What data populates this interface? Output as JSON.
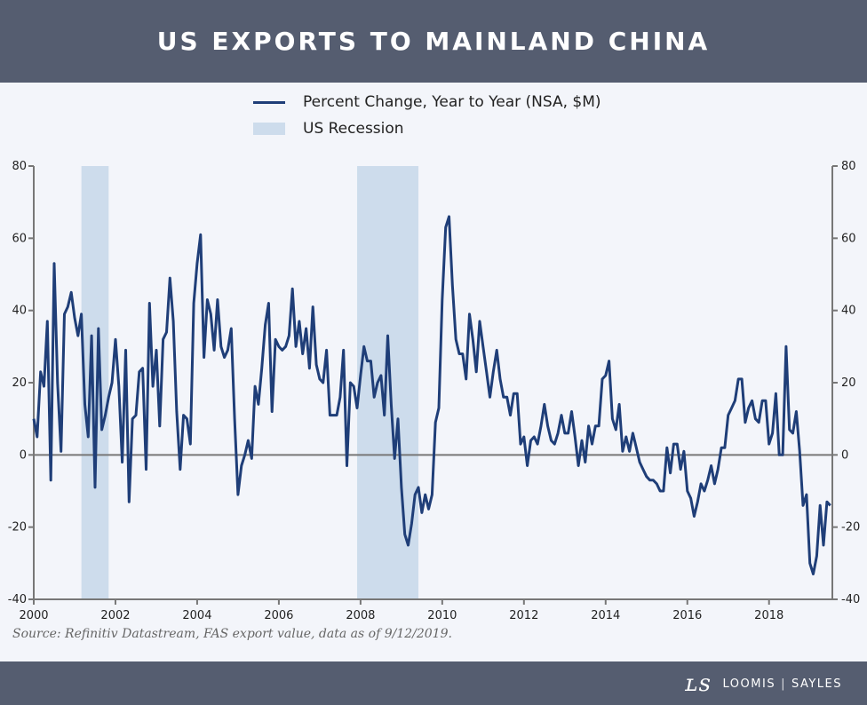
{
  "header": {
    "title": "US EXPORTS TO MAINLAND CHINA"
  },
  "footer": {
    "source": "Source: Refinitiv Datastream, FAS export value, data as of 9/12/2019.",
    "logo_left": "LOOMIS",
    "logo_right": "SAYLES",
    "logo_mark": "LS"
  },
  "colors": {
    "line": "#1f3e78",
    "recession": "#cddcec",
    "header": "#555d70",
    "background": "#f3f5fa"
  },
  "chart_data": {
    "type": "line",
    "title": "US EXPORTS TO MAINLAND CHINA",
    "xlim": [
      2000,
      2019.55
    ],
    "ylim": [
      -40,
      80
    ],
    "grid": false,
    "legend_placement": "top",
    "x_ticks": [
      "2000",
      "2002",
      "2004",
      "2006",
      "2008",
      "2010",
      "2012",
      "2014",
      "2016",
      "2018"
    ],
    "y_ticks": [
      "80",
      "60",
      "40",
      "20",
      "0",
      "-20",
      "-40"
    ],
    "series": [
      {
        "name": "Percent Change, Year to Year (NSA, $M)",
        "start": "2000-01",
        "frequency": "monthly",
        "values": [
          10,
          5,
          23,
          19,
          37,
          -7,
          53,
          20,
          1,
          39,
          41,
          45,
          38,
          33,
          39,
          14,
          5,
          33,
          -9,
          35,
          7,
          11,
          16,
          20,
          32,
          19,
          -2,
          29,
          -13,
          10,
          11,
          23,
          24,
          -4,
          42,
          19,
          29,
          8,
          32,
          34,
          49,
          37,
          12,
          -4,
          11,
          10,
          3,
          42,
          53,
          61,
          27,
          43,
          39,
          29,
          43,
          30,
          27,
          29,
          35,
          10,
          -11,
          -3,
          0,
          4,
          -1,
          19,
          14,
          24,
          36,
          42,
          12,
          32,
          30,
          29,
          30,
          33,
          46,
          30,
          37,
          28,
          35,
          24,
          41,
          25,
          21,
          20,
          29,
          11,
          11,
          11,
          16,
          29,
          -3,
          20,
          19,
          13,
          22,
          30,
          26,
          26,
          16,
          20,
          22,
          11,
          33,
          14,
          -1,
          10,
          -9,
          -22,
          -25,
          -19,
          -11,
          -9,
          -16,
          -11,
          -15,
          -11,
          9,
          13,
          43,
          63,
          66,
          47,
          32,
          28,
          28,
          21,
          39,
          32,
          23,
          37,
          30,
          23,
          16,
          23,
          29,
          21,
          16,
          16,
          11,
          17,
          17,
          3,
          5,
          -3,
          4,
          5,
          3,
          8,
          14,
          8,
          4,
          3,
          6,
          11,
          6,
          6,
          12,
          5,
          -3,
          4,
          -2,
          8,
          3,
          8,
          8,
          21,
          22,
          26,
          10,
          7,
          14,
          1,
          5,
          1,
          6,
          2,
          -2,
          -4,
          -6,
          -7,
          -7,
          -8,
          -10,
          -10,
          2,
          -5,
          3,
          3,
          -4,
          1,
          -10,
          -12,
          -17,
          -13,
          -8,
          -10,
          -7,
          -3,
          -8,
          -4,
          2,
          2,
          11,
          13,
          15,
          21,
          21,
          9,
          13,
          15,
          10,
          9,
          15,
          15,
          3,
          6,
          17,
          0,
          0,
          30,
          7,
          6,
          12,
          1,
          -14,
          -11,
          -30,
          -33,
          -28,
          -14,
          -25,
          -13,
          -14
        ]
      }
    ],
    "bands": [
      {
        "name": "US Recession",
        "ranges": [
          [
            "2001-03",
            "2001-11"
          ],
          [
            "2007-12",
            "2009-06"
          ]
        ]
      }
    ]
  }
}
